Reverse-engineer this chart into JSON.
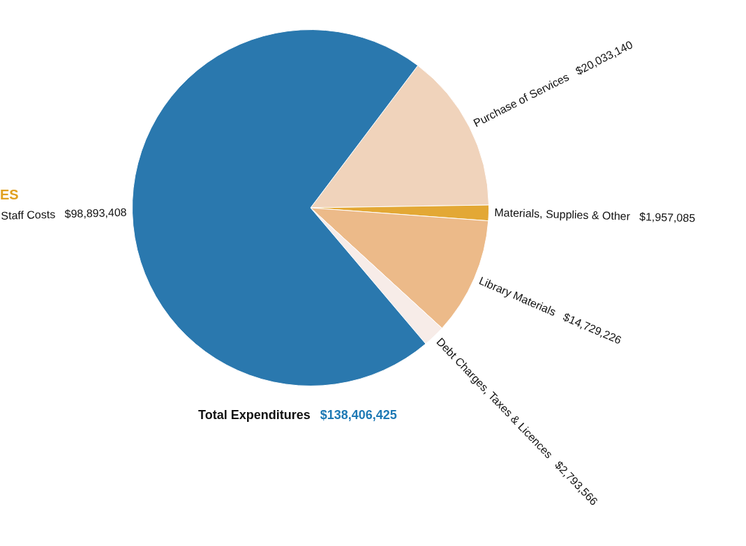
{
  "chart_data": {
    "type": "pie",
    "title": "ES",
    "categories": [
      "Purchase of Services",
      "Materials, Supplies & Other",
      "Library Materials",
      "Debt Charges, Taxes & Licences",
      "Staff Costs"
    ],
    "values": [
      20033140,
      1957085,
      14729226,
      2793566,
      98893408
    ],
    "value_labels": [
      "$20,033,140",
      "$1,957,085",
      "$14,729,226",
      "$2,793,566",
      "$98,893,408"
    ],
    "colors": [
      "#f0d3bb",
      "#e3a835",
      "#ecba89",
      "#f7ece8",
      "#2a78ae"
    ],
    "annotations": [
      "Total Expenditures",
      "$138,406,425"
    ],
    "legend": false
  }
}
